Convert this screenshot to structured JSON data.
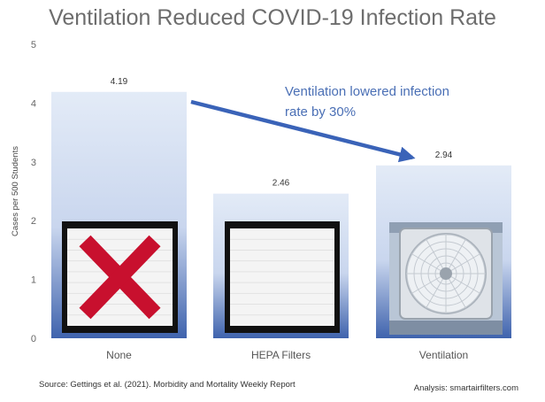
{
  "chart_data": {
    "type": "bar",
    "title": "Ventilation Reduced COVID-19 Infection Rate",
    "xlabel": "",
    "ylabel": "Cases per 500 Students",
    "ylim": [
      0,
      5
    ],
    "yticks": [
      "0",
      "1",
      "2",
      "3",
      "4",
      "5"
    ],
    "categories": [
      "None",
      "HEPA Filters",
      "Ventilation"
    ],
    "values": [
      4.19,
      2.46,
      2.94
    ],
    "value_labels": [
      "4.19",
      "2.46",
      "2.94"
    ],
    "bar_images": [
      "filter-with-red-x",
      "hepa-filter",
      "box-fan"
    ],
    "grid": false,
    "legend": "none",
    "annotation": {
      "lines": [
        "Ventilation lowered infection",
        "rate by 30%"
      ],
      "arrow_from": "None",
      "arrow_to": "Ventilation"
    },
    "colors": {
      "bar_top": "#e3ebf7",
      "bar_bottom": "#3f63ad",
      "arrow": "#3a63b8",
      "x_mark": "#c8102e",
      "title": "#6d6d6d"
    }
  },
  "footer": {
    "source": "Source: Gettings et al. (2021). Morbidity and Mortality Weekly Report",
    "analysis": "Analysis: smartairfilters.com"
  }
}
